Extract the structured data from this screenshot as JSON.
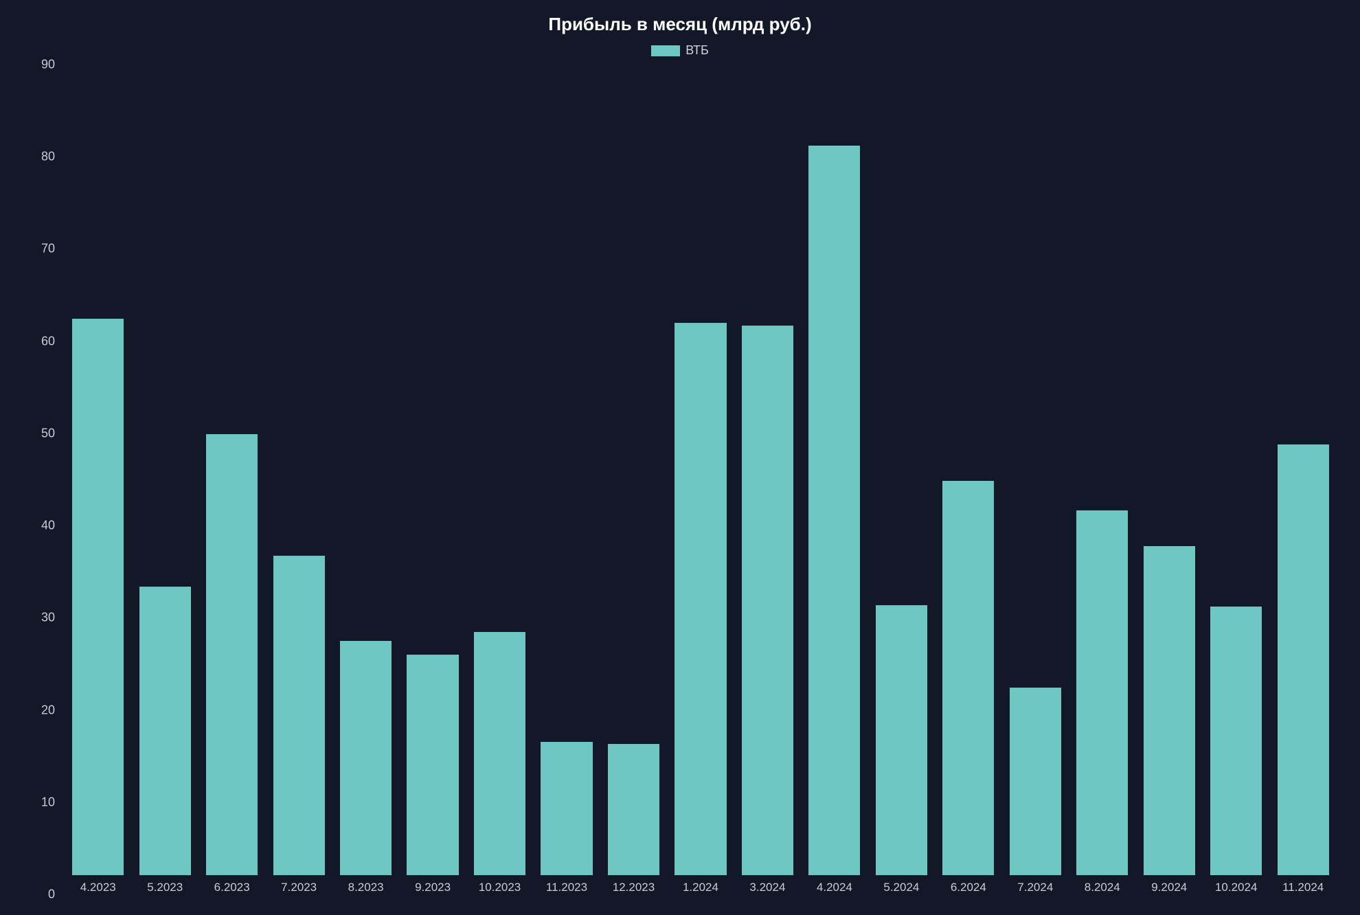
{
  "chart": {
    "type": "bar",
    "title": "Прибыль в месяц  (млрд руб.)",
    "title_fontsize": 26,
    "title_color": "#ffffff",
    "background_color": "#121828",
    "legend": {
      "label": "ВТБ",
      "swatch_color": "#6ec7c2",
      "text_color": "#d0d4dc",
      "fontsize": 18
    },
    "bar_color": "#6ec7c2",
    "axis_label_color": "#c8ccd4",
    "axis_fontsize": 18,
    "ylim": [
      0,
      90
    ],
    "ytick_step": 10,
    "yticks": [
      0,
      10,
      20,
      30,
      40,
      50,
      60,
      70,
      80,
      90
    ],
    "bar_width": 0.88,
    "categories": [
      "4.2023",
      "5.2023",
      "6.2023",
      "7.2023",
      "8.2023",
      "9.2023",
      "10.2023",
      "11.2023",
      "12.2023",
      "1.2024",
      "3.2024",
      "4.2024",
      "5.2024",
      "6.2024",
      "7.2024",
      "8.2024",
      "9.2024",
      "10.2024",
      "11.2024"
    ],
    "values": [
      61.8,
      32.0,
      49.0,
      35.5,
      26.0,
      24.5,
      27.0,
      14.8,
      14.6,
      61.3,
      61.0,
      81.0,
      30.0,
      43.8,
      20.8,
      40.5,
      36.5,
      29.8,
      47.8
    ]
  }
}
